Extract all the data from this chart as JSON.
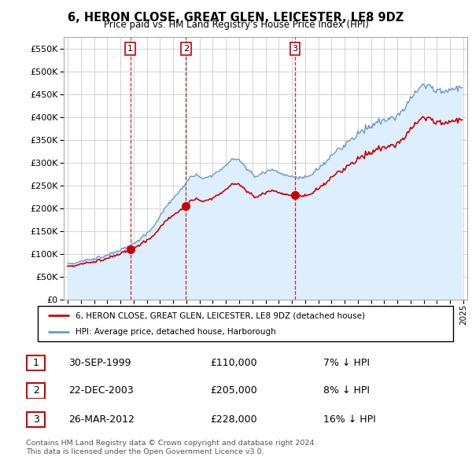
{
  "title": "6, HERON CLOSE, GREAT GLEN, LEICESTER, LE8 9DZ",
  "subtitle": "Price paid vs. HM Land Registry's House Price Index (HPI)",
  "legend_label_red": "6, HERON CLOSE, GREAT GLEN, LEICESTER, LE8 9DZ (detached house)",
  "legend_label_blue": "HPI: Average price, detached house, Harborough",
  "transactions": [
    {
      "num": 1,
      "date": "30-SEP-1999",
      "price": 110000,
      "pct": "7%",
      "dir": "↓",
      "year": 1999.75
    },
    {
      "num": 2,
      "date": "22-DEC-2003",
      "price": 205000,
      "pct": "8%",
      "dir": "↓",
      "year": 2003.97
    },
    {
      "num": 3,
      "date": "26-MAR-2012",
      "price": 228000,
      "pct": "16%",
      "dir": "↓",
      "year": 2012.23
    }
  ],
  "footnote1": "Contains HM Land Registry data © Crown copyright and database right 2024.",
  "footnote2": "This data is licensed under the Open Government Licence v3.0.",
  "ylim": [
    0,
    575000
  ],
  "yticks": [
    0,
    50000,
    100000,
    150000,
    200000,
    250000,
    300000,
    350000,
    400000,
    450000,
    500000,
    550000
  ],
  "xlim_start": 1994.7,
  "xlim_end": 2025.3,
  "color_red": "#cc0000",
  "color_blue": "#6699cc",
  "color_blue_fill": "#ddeeff",
  "color_grid": "#cccccc",
  "background_color": "#ffffff"
}
